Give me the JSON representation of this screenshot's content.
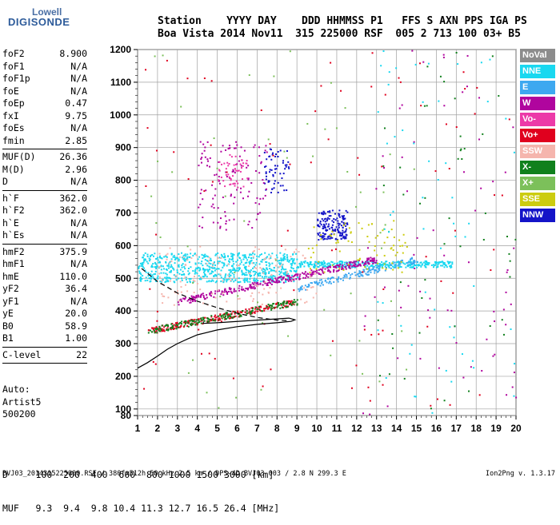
{
  "logo": {
    "line1": "Lowell",
    "line2": "DIGISONDE"
  },
  "header": {
    "line1": "Station    YYYY DAY    DDD HHMMSS P1   FFS S AXN PPS IGA PS",
    "line2": "Boa Vista 2014 Nov11  315 225000 RSF  005 2 713 100 03+ B5"
  },
  "params": [
    [
      [
        "foF2",
        "8.900"
      ],
      [
        "foF1",
        "N/A"
      ],
      [
        "foF1p",
        "N/A"
      ],
      [
        "foE",
        "N/A"
      ],
      [
        "foEp",
        "0.47"
      ],
      [
        "fxI",
        "9.75"
      ],
      [
        "foEs",
        "N/A"
      ],
      [
        "fmin",
        "2.85"
      ]
    ],
    [
      [
        "MUF(D)",
        "26.36"
      ],
      [
        "M(D)",
        "2.96"
      ],
      [
        "D",
        "N/A"
      ]
    ],
    [
      [
        "h`F",
        "362.0"
      ],
      [
        "h`F2",
        "362.0"
      ],
      [
        "h`E",
        "N/A"
      ],
      [
        "h`Es",
        "N/A"
      ]
    ],
    [
      [
        "hmF2",
        "375.9"
      ],
      [
        "hmF1",
        "N/A"
      ],
      [
        "hmE",
        "110.0"
      ],
      [
        "yF2",
        "36.4"
      ],
      [
        "yF1",
        "N/A"
      ],
      [
        "yE",
        "20.0"
      ],
      [
        "B0",
        "58.9"
      ],
      [
        "B1",
        "1.00"
      ]
    ],
    [
      [
        "C-level",
        "22"
      ]
    ]
  ],
  "auto": {
    "line1": "Auto:",
    "line2": "Artist5",
    "line3": "500200"
  },
  "dmuf": {
    "d_line": "D     100  200  400  600  800 1000 1500 3000 [km]",
    "muf_line": "MUF   9.3  9.4  9.8 10.4 11.3 12.7 16.5 26.4 [MHz]"
  },
  "footer": {
    "text": "BVJ03_2014315225000.RSF / 380fx512h 50 kHz 2.5 km / DPS-4D BVJ03 003 / 2.8 N 299.3 E",
    "version": "Ion2Png v. 1.3.17"
  },
  "legend": [
    {
      "label": "NoVal",
      "color": "#8c8c8c"
    },
    {
      "label": "NNE",
      "color": "#19d8f0"
    },
    {
      "label": "E",
      "color": "#3ea8f0"
    },
    {
      "label": "W",
      "color": "#b0059e"
    },
    {
      "label": "Vo-",
      "color": "#ec3aa8"
    },
    {
      "label": "Vo+",
      "color": "#e0001e"
    },
    {
      "label": "SSW",
      "color": "#f5b5ad"
    },
    {
      "label": "X-",
      "color": "#10801c"
    },
    {
      "label": "X+",
      "color": "#7cc05a"
    },
    {
      "label": "SSE",
      "color": "#cccc10"
    },
    {
      "label": "NNW",
      "color": "#1414c8"
    }
  ],
  "chart_data": {
    "type": "scatter",
    "xlim": [
      1,
      20
    ],
    "ylim": [
      80,
      1200
    ],
    "xticks": [
      1,
      2,
      3,
      4,
      5,
      6,
      7,
      8,
      9,
      10,
      11,
      12,
      13,
      14,
      15,
      16,
      17,
      18,
      19,
      20
    ],
    "yticks": [
      80,
      100,
      200,
      300,
      400,
      500,
      600,
      700,
      800,
      900,
      1000,
      1100,
      1200
    ],
    "grid": true,
    "legend_position": "right",
    "clusters": [
      {
        "color": "#19d8f0",
        "x0": 1.0,
        "x1": 9.0,
        "y0": 490,
        "y1": 580,
        "n": 700
      },
      {
        "color": "#19d8f0",
        "x0": 9.0,
        "x1": 16.8,
        "y0": 535,
        "y1": 555,
        "n": 320
      },
      {
        "color": "#b0059e",
        "x0": 3.0,
        "x1": 13.0,
        "y0": 430,
        "y1": 560,
        "n": 320,
        "slope": true
      },
      {
        "color": "#3ea8f0",
        "x0": 9.0,
        "x1": 15.0,
        "y0": 470,
        "y1": 560,
        "n": 150,
        "slope": true
      },
      {
        "color": "#e0001e",
        "x0": 1.5,
        "x1": 9.0,
        "y0": 340,
        "y1": 430,
        "n": 220,
        "slope": true
      },
      {
        "color": "#10801c",
        "x0": 1.5,
        "x1": 9.0,
        "y0": 340,
        "y1": 430,
        "n": 180,
        "slope": true
      },
      {
        "color": "#f5b5ad",
        "x0": 2.0,
        "x1": 10.0,
        "y0": 420,
        "y1": 600,
        "n": 140
      },
      {
        "color": "#1414c8",
        "x0": 10.0,
        "x1": 11.5,
        "y0": 620,
        "y1": 710,
        "n": 160
      },
      {
        "color": "#1414c8",
        "x0": 7.3,
        "x1": 8.6,
        "y0": 760,
        "y1": 900,
        "n": 60
      },
      {
        "color": "#cccc10",
        "x0": 9.5,
        "x1": 14.5,
        "y0": 520,
        "y1": 680,
        "n": 80
      },
      {
        "color": "#b0059e",
        "x0": 4.0,
        "x1": 7.5,
        "y0": 650,
        "y1": 920,
        "n": 120
      },
      {
        "color": "#ec3aa8",
        "x0": 5.0,
        "x1": 6.5,
        "y0": 780,
        "y1": 880,
        "n": 50
      },
      {
        "color": "#7cc05a",
        "x0": 1.5,
        "x1": 15.0,
        "y0": 100,
        "y1": 1200,
        "n": 60
      },
      {
        "color": "#e0001e",
        "x0": 1.2,
        "x1": 20.0,
        "y0": 85,
        "y1": 1200,
        "n": 90
      },
      {
        "color": "#b0059e",
        "x0": 12.0,
        "x1": 20.0,
        "y0": 85,
        "y1": 1200,
        "n": 70
      },
      {
        "color": "#19d8f0",
        "x0": 13.0,
        "x1": 20.0,
        "y0": 85,
        "y1": 1200,
        "n": 60
      },
      {
        "color": "#10801c",
        "x0": 13.0,
        "x1": 20.0,
        "y0": 85,
        "y1": 1200,
        "n": 50
      }
    ],
    "profile_line": [
      [
        1.0,
        225
      ],
      [
        1.5,
        242
      ],
      [
        2.0,
        262
      ],
      [
        2.5,
        283
      ],
      [
        3.0,
        300
      ],
      [
        3.5,
        314
      ],
      [
        4.0,
        327
      ],
      [
        5.0,
        342
      ],
      [
        6.0,
        352
      ],
      [
        7.0,
        359
      ],
      [
        8.0,
        364
      ],
      [
        8.7,
        368
      ],
      [
        8.9,
        373
      ],
      [
        8.6,
        378
      ],
      [
        7.0,
        372
      ],
      [
        5.0,
        364
      ],
      [
        4.3,
        362
      ],
      [
        4.3,
        368
      ]
    ],
    "dashed_line": [
      [
        1.2,
        530
      ],
      [
        2.0,
        490
      ],
      [
        3.0,
        455
      ],
      [
        4.0,
        430
      ],
      [
        5.0,
        410
      ],
      [
        6.0,
        393
      ],
      [
        7.0,
        380
      ],
      [
        8.0,
        372
      ],
      [
        8.6,
        370
      ]
    ]
  }
}
